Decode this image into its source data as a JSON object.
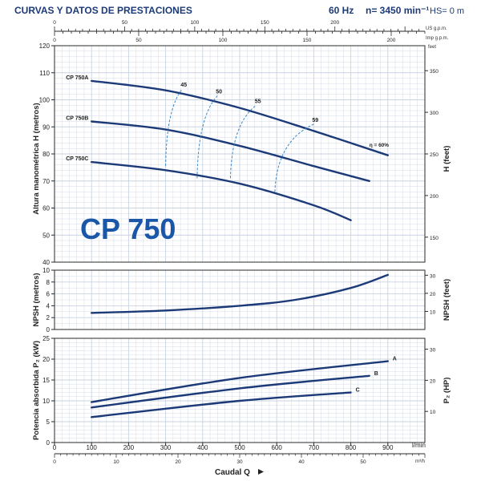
{
  "header": {
    "title": "CURVAS Y DATOS DE PRESTACIONES",
    "freq": "60 Hz",
    "speed": "n= 3450 min⁻¹",
    "hs": "HS= 0 m"
  },
  "logo_text": "CP 750",
  "colors": {
    "curve": "#1c3a78",
    "iso": "#3b86c4",
    "text": "#1c3a78",
    "grid": "#c9d3e2",
    "frame": "#2a2a2a"
  },
  "top_scale_us": {
    "unit": "US g.p.m.",
    "ticks": [
      0,
      50,
      100,
      150,
      200
    ]
  },
  "top_scale_imp": {
    "unit": "Imp g.p.m.",
    "ticks": [
      0,
      50,
      100,
      150,
      200
    ]
  },
  "bottom_scale_m3h": {
    "unit": "m³/h",
    "ticks": [
      0,
      10,
      20,
      30,
      40,
      50
    ]
  },
  "flow_axis": {
    "unit": "l/min",
    "ticks": [
      0,
      100,
      200,
      300,
      400,
      500,
      600,
      700,
      800,
      900
    ],
    "label": "Caudal Q"
  },
  "chart_data": [
    {
      "type": "line",
      "id": "head",
      "ylabel": "Altura manométrica H (metros)",
      "y2label": "H (feet)",
      "y2unit": "feet",
      "ylim": [
        40,
        120
      ],
      "yticks": [
        40,
        50,
        60,
        70,
        80,
        90,
        100,
        110,
        120
      ],
      "y2ticks": [
        150,
        200,
        250,
        300,
        350
      ],
      "series": [
        {
          "name": "CP 750A",
          "x": [
            100,
            300,
            500,
            700,
            900
          ],
          "y": [
            107,
            103.5,
            97,
            88.5,
            79.5
          ]
        },
        {
          "name": "CP 750B",
          "x": [
            100,
            300,
            500,
            700,
            850
          ],
          "y": [
            92,
            89,
            83,
            75.5,
            70
          ]
        },
        {
          "name": "CP 750C",
          "x": [
            100,
            300,
            500,
            700,
            800
          ],
          "y": [
            77,
            74,
            69,
            61,
            55.5
          ]
        }
      ],
      "efficiency": [
        {
          "label": "45",
          "x": [
            300,
            345
          ],
          "y": [
            75.5,
            104
          ]
        },
        {
          "label": "50",
          "x": [
            385,
            440
          ],
          "y": [
            71,
            101.5
          ]
        },
        {
          "label": "55",
          "x": [
            475,
            545
          ],
          "y": [
            71,
            98
          ]
        },
        {
          "label": "59",
          "x": [
            595,
            700
          ],
          "y": [
            66,
            91
          ]
        }
      ],
      "eta_label": "η = 60%"
    },
    {
      "type": "line",
      "id": "npsh",
      "ylabel": "NPSH (metros)",
      "y2label": "NPSH (feet)",
      "ylim": [
        0,
        10
      ],
      "yticks": [
        0,
        2,
        4,
        6,
        8,
        10
      ],
      "y2ticks": [
        10,
        20,
        30
      ],
      "series": [
        {
          "x": [
            100,
            300,
            500,
            650,
            800,
            900
          ],
          "y": [
            2.8,
            3.2,
            4.0,
            5.0,
            7.0,
            9.2
          ]
        }
      ]
    },
    {
      "type": "line",
      "id": "power",
      "ylabel": "Potencia absorbida P₂ (kW)",
      "y2label": "P₂ (HP)",
      "ylim": [
        0,
        25
      ],
      "yticks": [
        0,
        5,
        10,
        15,
        20,
        25
      ],
      "y2ticks": [
        10,
        20,
        30
      ],
      "series": [
        {
          "name": "A",
          "x": [
            100,
            500,
            900
          ],
          "y": [
            9.7,
            15.5,
            19.5
          ]
        },
        {
          "name": "B",
          "x": [
            100,
            500,
            850
          ],
          "y": [
            8.4,
            13.0,
            16.0
          ]
        },
        {
          "name": "C",
          "x": [
            100,
            500,
            800
          ],
          "y": [
            6.1,
            10.0,
            12.0
          ]
        }
      ]
    }
  ]
}
